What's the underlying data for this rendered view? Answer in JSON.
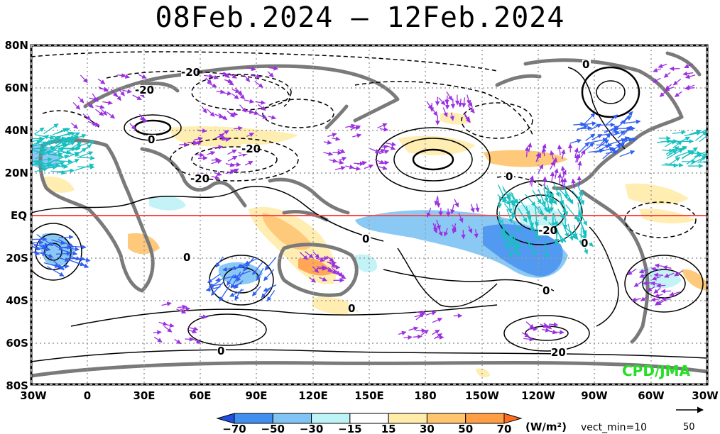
{
  "title": "08Feb.2024 – 12Feb.2024",
  "map": {
    "lat_labels": [
      "80N",
      "60N",
      "40N",
      "20N",
      "EQ",
      "20S",
      "40S",
      "60S",
      "80S"
    ],
    "lon_labels": [
      "30W",
      "0",
      "30E",
      "60E",
      "90E",
      "120E",
      "150E",
      "180",
      "150W",
      "120W",
      "90W",
      "60W",
      "30W"
    ],
    "contour_labels": [
      "0",
      "-20",
      "-20",
      "0",
      "-20",
      "-20",
      "0",
      "0",
      "0",
      "0",
      "0",
      "-20",
      "0",
      "0",
      "20"
    ],
    "credit": "CPD/JMA",
    "equator_color": "#ff4a4a"
  },
  "colorbar": {
    "levels": [
      "−70",
      "−50",
      "−30",
      "−15",
      "15",
      "30",
      "50",
      "70"
    ],
    "colors": [
      "#1f4fe0",
      "#3f8ef0",
      "#7fc4f4",
      "#bdf2f7",
      "#ffffff",
      "#ffecaa",
      "#ffc46e",
      "#ff9e44",
      "#ff6e1e"
    ],
    "unit_label": "(W/m²)",
    "vector_min_label": "vect_min=10",
    "reference_vector_value": "50"
  }
}
